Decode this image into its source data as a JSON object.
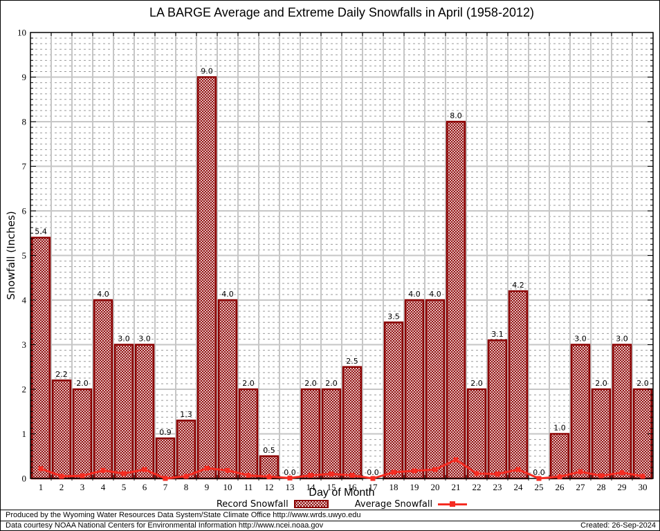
{
  "title": "LA BARGE Average and Extreme Daily Snowfalls in April (1958-2012)",
  "chart_data": {
    "type": "bar",
    "title": "LA BARGE Average and Extreme Daily Snowfalls in April (1958-2012)",
    "categories": [
      1,
      2,
      3,
      4,
      5,
      6,
      7,
      8,
      9,
      10,
      11,
      12,
      13,
      14,
      15,
      16,
      17,
      18,
      19,
      20,
      21,
      22,
      23,
      24,
      25,
      26,
      27,
      28,
      29,
      30
    ],
    "series": [
      {
        "name": "Record Snowfall",
        "type": "bar",
        "values": [
          5.4,
          2.2,
          2.0,
          4.0,
          3.0,
          3.0,
          0.9,
          1.3,
          9.0,
          4.0,
          2.0,
          0.5,
          0.0,
          2.0,
          2.0,
          2.5,
          0.0,
          3.5,
          4.0,
          4.0,
          8.0,
          2.0,
          3.1,
          4.2,
          0.0,
          1.0,
          3.0,
          2.0,
          3.0,
          2.0
        ]
      },
      {
        "name": "Average Snowfall",
        "type": "line",
        "values": [
          0.22,
          0.05,
          0.06,
          0.18,
          0.11,
          0.2,
          0.0,
          0.05,
          0.23,
          0.18,
          0.07,
          0.04,
          0.01,
          0.07,
          0.1,
          0.07,
          0.0,
          0.14,
          0.17,
          0.2,
          0.42,
          0.11,
          0.1,
          0.2,
          0.0,
          0.04,
          0.15,
          0.06,
          0.13,
          0.05
        ]
      }
    ],
    "xlabel": "Day of Month",
    "ylabel": "Snowfall (Inches)",
    "ylim": [
      0,
      10
    ],
    "yticks": [
      0,
      1,
      2,
      3,
      4,
      5,
      6,
      7,
      8,
      9,
      10
    ],
    "bar_value_labels": true,
    "grid": "major and minor (minor step 0.125, dashed)",
    "legend_position": "bottom",
    "colors": {
      "bar_outline": "#8b0000",
      "bar_hatch": "#8b0000",
      "line": "#f52c22",
      "grid_major": "#c6c6c6",
      "grid_minor": "#999999",
      "background": "#ffffff"
    }
  },
  "footer": {
    "produced_by": "Produced by the Wyoming Water Resources Data System/State Climate Office http://www.wrds.uwyo.edu",
    "data_courtesy": "Data courtesy NOAA National Centers for Environmental Information http://www.ncei.noaa.gov",
    "created": "Created: 26-Sep-2024"
  }
}
